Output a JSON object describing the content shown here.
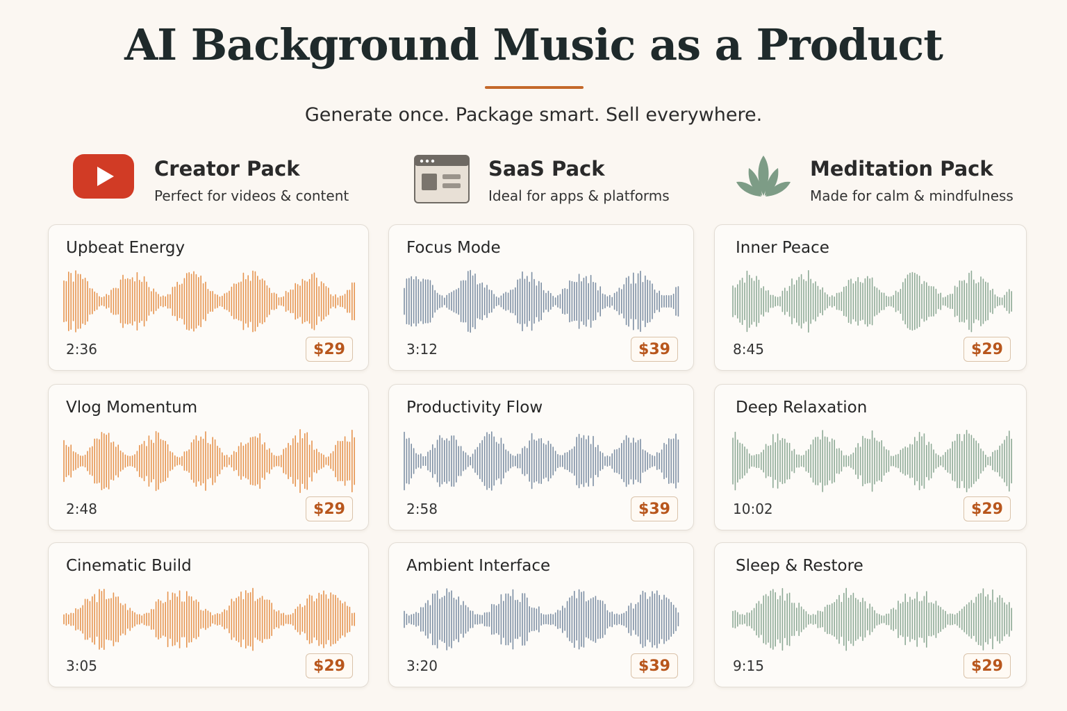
{
  "header": {
    "title": "AI Background Music as a Product",
    "subtitle": "Generate once. Package smart. Sell everywhere."
  },
  "colors": {
    "accent": "#c4682a",
    "creator_wave": "#e6944f",
    "saas_wave": "#7d8fa4",
    "meditation_wave": "#8eaa96",
    "price_text": "#b8561c"
  },
  "packs": [
    {
      "name": "Creator Pack",
      "desc": "Perfect for videos & content",
      "icon": "youtube-play-icon",
      "tracks": [
        {
          "title": "Upbeat Energy",
          "duration": "2:36",
          "price": "$29"
        },
        {
          "title": "Vlog Momentum",
          "duration": "2:48",
          "price": "$29"
        },
        {
          "title": "Cinematic Build",
          "duration": "3:05",
          "price": "$29"
        }
      ]
    },
    {
      "name": "SaaS Pack",
      "desc": "Ideal for apps & platforms",
      "icon": "browser-window-icon",
      "tracks": [
        {
          "title": "Focus Mode",
          "duration": "3:12",
          "price": "$39"
        },
        {
          "title": "Productivity Flow",
          "duration": "2:58",
          "price": "$39"
        },
        {
          "title": "Ambient Interface",
          "duration": "3:20",
          "price": "$39"
        }
      ]
    },
    {
      "name": "Meditation Pack",
      "desc": "Made for calm & mindfulness",
      "icon": "lotus-icon",
      "tracks": [
        {
          "title": "Inner Peace",
          "duration": "8:45",
          "price": "$29"
        },
        {
          "title": "Deep Relaxation",
          "duration": "10:02",
          "price": "$29"
        },
        {
          "title": "Sleep & Restore",
          "duration": "9:15",
          "price": "$29"
        }
      ]
    }
  ]
}
